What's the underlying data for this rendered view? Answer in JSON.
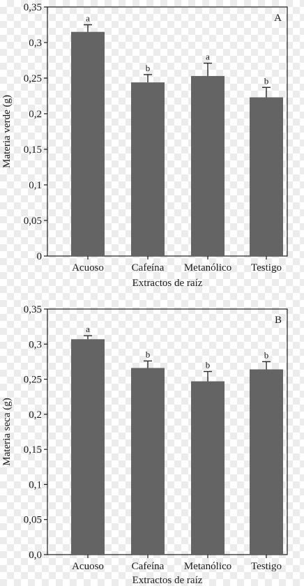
{
  "chart_data": [
    {
      "type": "bar",
      "panel_label": "A",
      "categories": [
        "Acuoso",
        "Cafeína",
        "Metanólico",
        "Testigo"
      ],
      "values": [
        0.315,
        0.244,
        0.253,
        0.223
      ],
      "errors": [
        0.01,
        0.011,
        0.018,
        0.014
      ],
      "significance": [
        "a",
        "b",
        "a",
        "b"
      ],
      "xlabel": "Extractos de raíz",
      "ylabel": "Materia verde (g)",
      "ylim": [
        0,
        0.35
      ],
      "yticks": [
        "0",
        "0,05",
        "0,1",
        "0,15",
        "0,2",
        "0,25",
        "0,3",
        "0,35"
      ],
      "bar_color": "#646464",
      "grid": false
    },
    {
      "type": "bar",
      "panel_label": "B",
      "categories": [
        "Acuoso",
        "Cafeína",
        "Metanólico",
        "Testigo"
      ],
      "values": [
        0.307,
        0.266,
        0.247,
        0.264
      ],
      "errors": [
        0.005,
        0.01,
        0.014,
        0.011
      ],
      "significance": [
        "a",
        "b",
        "b",
        "b"
      ],
      "xlabel": "Extractos de raíz",
      "ylabel": "Materia seca (g)",
      "ylim": [
        0,
        0.35
      ],
      "yticks": [
        "0,0",
        "0,05",
        "0,1",
        "0,15",
        "0,2",
        "0,25",
        "0,3",
        "0,35"
      ],
      "bar_color": "#646464",
      "grid": false
    }
  ]
}
